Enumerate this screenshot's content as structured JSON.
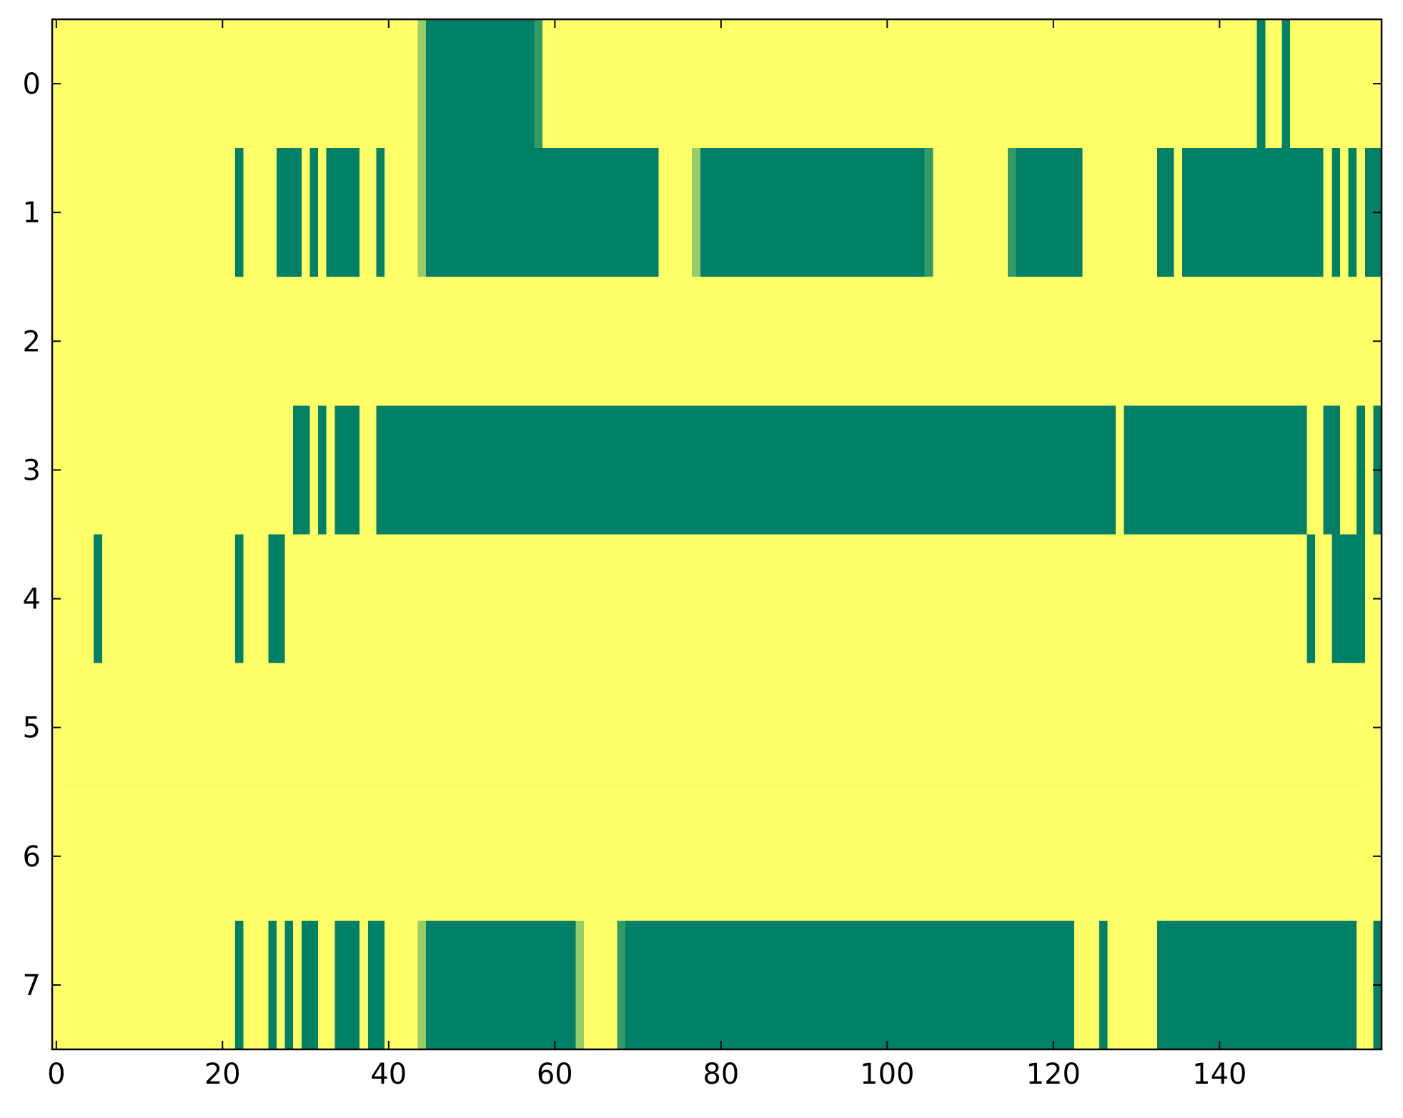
{
  "chart_data": {
    "type": "heatmap",
    "title": "",
    "xlabel": "",
    "ylabel": "",
    "xlim": [
      -0.5,
      159.5
    ],
    "ylim": [
      7.5,
      -0.5
    ],
    "grid": false,
    "legend": "none",
    "colormap": "summer",
    "colors": {
      "low": "#008066",
      "mid_low": "#339966",
      "mid_high": "#99cc66",
      "high": "#ffff66",
      "frame": "#000000",
      "text": "#000000"
    },
    "x_ticks": [
      0,
      20,
      40,
      60,
      80,
      100,
      120,
      140
    ],
    "x_tick_labels": [
      "0",
      "20",
      "40",
      "60",
      "80",
      "100",
      "120",
      "140"
    ],
    "y_ticks": [
      0,
      1,
      2,
      3,
      4,
      5,
      6,
      7
    ],
    "y_tick_labels": [
      "0",
      "1",
      "2",
      "3",
      "4",
      "5",
      "6",
      "7"
    ],
    "n_columns": 160,
    "background_value": 1.0,
    "value_description": "cells default to 1.0 (yellow); listed runs give other values",
    "rows": [
      {
        "row": 0,
        "runs": [
          {
            "from": 44,
            "to": 44,
            "value": 0.6
          },
          {
            "from": 45,
            "to": 57,
            "value": 0.0
          },
          {
            "from": 58,
            "to": 58,
            "value": 0.2
          },
          {
            "from": 145,
            "to": 145,
            "value": 0.0
          },
          {
            "from": 148,
            "to": 148,
            "value": 0.0
          }
        ]
      },
      {
        "row": 1,
        "runs": [
          {
            "from": 22,
            "to": 22,
            "value": 0.0
          },
          {
            "from": 27,
            "to": 29,
            "value": 0.0
          },
          {
            "from": 31,
            "to": 31,
            "value": 0.0
          },
          {
            "from": 33,
            "to": 36,
            "value": 0.0
          },
          {
            "from": 39,
            "to": 39,
            "value": 0.0
          },
          {
            "from": 44,
            "to": 44,
            "value": 0.6
          },
          {
            "from": 45,
            "to": 72,
            "value": 0.0
          },
          {
            "from": 77,
            "to": 77,
            "value": 0.6
          },
          {
            "from": 78,
            "to": 104,
            "value": 0.0
          },
          {
            "from": 105,
            "to": 105,
            "value": 0.2
          },
          {
            "from": 115,
            "to": 115,
            "value": 0.2
          },
          {
            "from": 116,
            "to": 123,
            "value": 0.0
          },
          {
            "from": 133,
            "to": 134,
            "value": 0.0
          },
          {
            "from": 136,
            "to": 146,
            "value": 0.0
          },
          {
            "from": 147,
            "to": 152,
            "value": 0.0
          },
          {
            "from": 154,
            "to": 154,
            "value": 0.0
          },
          {
            "from": 156,
            "to": 156,
            "value": 0.0
          },
          {
            "from": 158,
            "to": 159,
            "value": 0.0
          }
        ]
      },
      {
        "row": 2,
        "runs": []
      },
      {
        "row": 3,
        "runs": [
          {
            "from": 29,
            "to": 30,
            "value": 0.0
          },
          {
            "from": 32,
            "to": 32,
            "value": 0.0
          },
          {
            "from": 34,
            "to": 36,
            "value": 0.0
          },
          {
            "from": 39,
            "to": 127,
            "value": 0.0
          },
          {
            "from": 129,
            "to": 150,
            "value": 0.0
          },
          {
            "from": 153,
            "to": 154,
            "value": 0.0
          },
          {
            "from": 157,
            "to": 157,
            "value": 0.0
          },
          {
            "from": 159,
            "to": 159,
            "value": 0.0
          }
        ]
      },
      {
        "row": 4,
        "runs": [
          {
            "from": 5,
            "to": 5,
            "value": 0.0
          },
          {
            "from": 22,
            "to": 22,
            "value": 0.0
          },
          {
            "from": 26,
            "to": 27,
            "value": 0.0
          },
          {
            "from": 151,
            "to": 151,
            "value": 0.0
          },
          {
            "from": 154,
            "to": 157,
            "value": 0.0
          }
        ]
      },
      {
        "row": 5,
        "runs": []
      },
      {
        "row": 6,
        "runs": []
      },
      {
        "row": 7,
        "runs": [
          {
            "from": 22,
            "to": 22,
            "value": 0.0
          },
          {
            "from": 26,
            "to": 26,
            "value": 0.0
          },
          {
            "from": 28,
            "to": 28,
            "value": 0.0
          },
          {
            "from": 30,
            "to": 31,
            "value": 0.0
          },
          {
            "from": 34,
            "to": 36,
            "value": 0.0
          },
          {
            "from": 38,
            "to": 39,
            "value": 0.0
          },
          {
            "from": 44,
            "to": 44,
            "value": 0.6
          },
          {
            "from": 45,
            "to": 62,
            "value": 0.0
          },
          {
            "from": 63,
            "to": 63,
            "value": 0.6
          },
          {
            "from": 68,
            "to": 68,
            "value": 0.2
          },
          {
            "from": 69,
            "to": 122,
            "value": 0.0
          },
          {
            "from": 126,
            "to": 126,
            "value": 0.0
          },
          {
            "from": 133,
            "to": 156,
            "value": 0.0
          },
          {
            "from": 159,
            "to": 159,
            "value": 0.0
          }
        ]
      }
    ]
  }
}
